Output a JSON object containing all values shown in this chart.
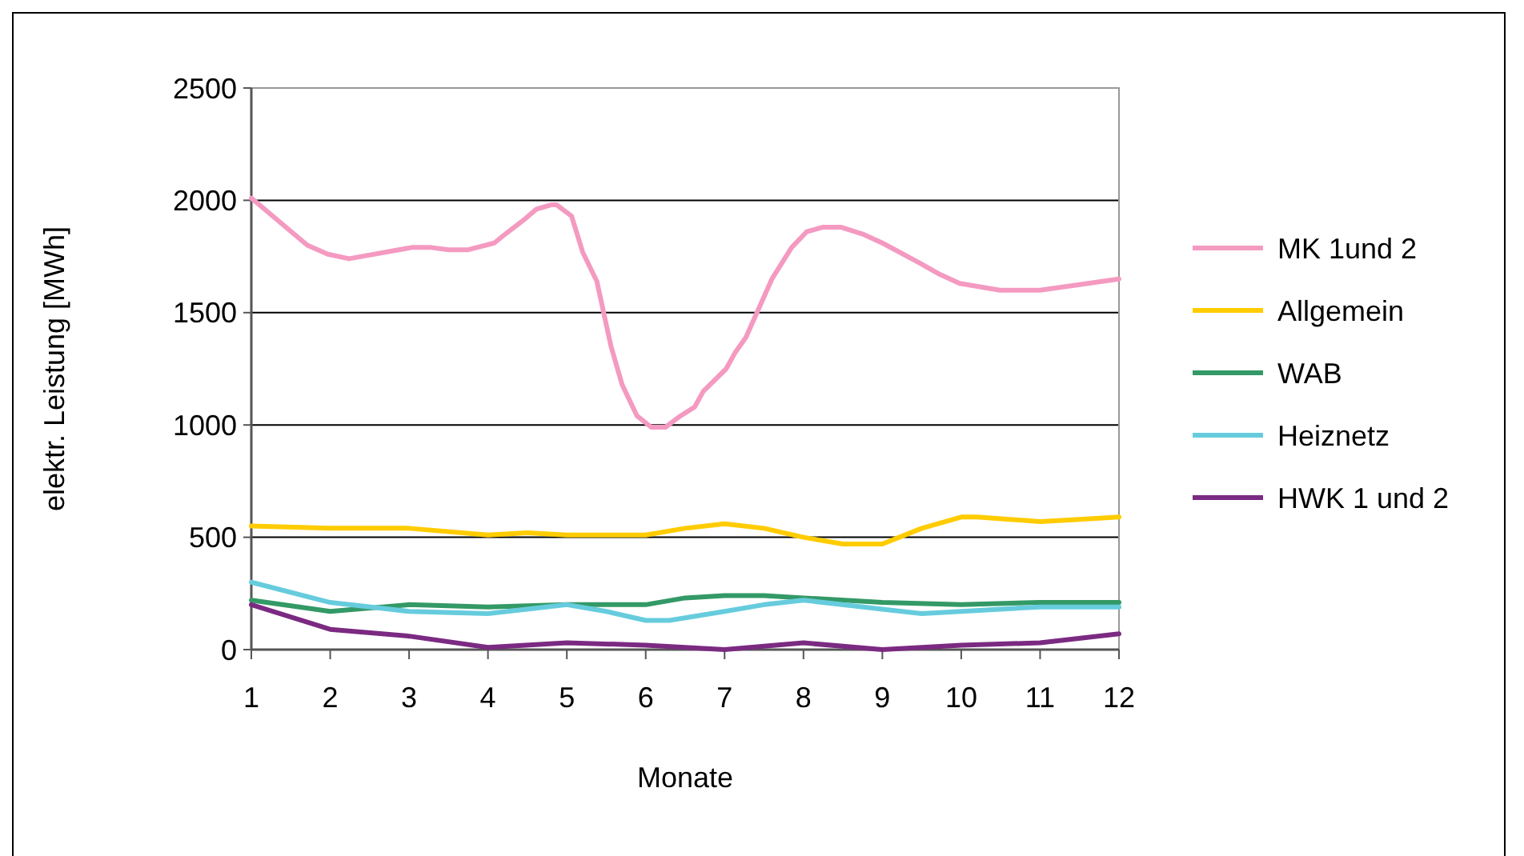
{
  "chart_data": {
    "type": "line",
    "xlabel": "Monate",
    "ylabel": "elektr. Leistung [MWh]",
    "xlim": [
      1,
      12
    ],
    "xticks": [
      1,
      2,
      3,
      4,
      5,
      6,
      7,
      8,
      9,
      10,
      11,
      12
    ],
    "ylim": [
      0,
      2500
    ],
    "yticks": [
      0,
      500,
      1000,
      1500,
      2000,
      2500
    ],
    "grid": "y",
    "legend": "right",
    "marker": "none",
    "line_style": "solid",
    "series": [
      {
        "name": "MK 1und 2",
        "color": "#f49ac1",
        "x": [
          1,
          1.71,
          1.97,
          2.24,
          3.03,
          3.28,
          3.5,
          3.75,
          4.08,
          4.22,
          4.48,
          4.61,
          4.8,
          4.87,
          5.06,
          5.2,
          5.38,
          5.56,
          5.7,
          5.89,
          6.07,
          6.25,
          6.44,
          6.62,
          6.73,
          7.02,
          7.13,
          7.27,
          7.6,
          7.85,
          8.04,
          8.24,
          8.48,
          8.75,
          9,
          9.48,
          9.73,
          9.98,
          10.49,
          11,
          12
        ],
        "values": [
          2010,
          1800,
          1760,
          1740,
          1790,
          1790,
          1780,
          1780,
          1810,
          1850,
          1920,
          1960,
          1980,
          1980,
          1930,
          1770,
          1640,
          1350,
          1180,
          1040,
          990,
          990,
          1040,
          1080,
          1150,
          1250,
          1320,
          1390,
          1650,
          1790,
          1860,
          1880,
          1880,
          1850,
          1810,
          1720,
          1670,
          1630,
          1600,
          1600,
          1650
        ]
      },
      {
        "name": "Allgemein",
        "color": "#ffcc00",
        "x": [
          1,
          2,
          3,
          4,
          4.5,
          5,
          6,
          6.5,
          7,
          7.5,
          8,
          8.5,
          9,
          9.5,
          10,
          10.2,
          11,
          11.5,
          12
        ],
        "values": [
          550,
          540,
          540,
          510,
          520,
          510,
          510,
          540,
          560,
          540,
          500,
          470,
          470,
          540,
          590,
          590,
          570,
          580,
          590
        ]
      },
      {
        "name": "WAB",
        "color": "#339966",
        "x": [
          1,
          2,
          3,
          4,
          5,
          6,
          6.5,
          7,
          7.5,
          8,
          9,
          10,
          11,
          12
        ],
        "values": [
          220,
          170,
          200,
          190,
          200,
          200,
          230,
          240,
          240,
          230,
          210,
          200,
          210,
          210
        ]
      },
      {
        "name": "Heiznetz",
        "color": "#66ccdd",
        "x": [
          1,
          2,
          3,
          4,
          5,
          5.5,
          6,
          6.3,
          7,
          7.5,
          8,
          9,
          9.5,
          10,
          11,
          12
        ],
        "values": [
          300,
          210,
          170,
          160,
          200,
          170,
          130,
          130,
          170,
          200,
          220,
          180,
          160,
          170,
          190,
          190
        ]
      },
      {
        "name": "HWK 1 und 2",
        "color": "#7b2a82",
        "x": [
          1,
          2,
          3,
          4,
          5,
          6,
          7,
          8,
          9,
          10,
          11,
          12
        ],
        "values": [
          200,
          90,
          60,
          10,
          30,
          20,
          0,
          30,
          0,
          20,
          30,
          70
        ]
      }
    ]
  }
}
